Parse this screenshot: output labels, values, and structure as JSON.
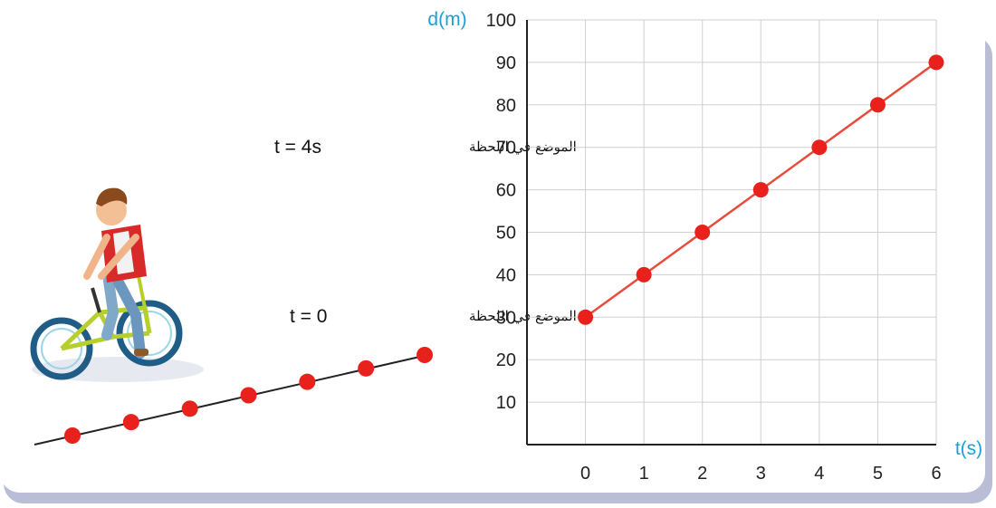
{
  "chart_data": {
    "type": "line",
    "x": [
      0,
      1,
      2,
      3,
      4,
      5,
      6
    ],
    "y": [
      30,
      40,
      50,
      60,
      70,
      80,
      90
    ],
    "xlabel": "t(s)",
    "ylabel": "d(m)",
    "xlim": [
      -1,
      6
    ],
    "ylim": [
      0,
      100
    ],
    "xticks": [
      0,
      1,
      2,
      3,
      4,
      5,
      6
    ],
    "yticks": [
      10,
      20,
      30,
      40,
      50,
      60,
      70,
      80,
      90,
      100
    ],
    "grid": true,
    "line_color": "#e84b3c",
    "marker_color": "#e8211d"
  },
  "illustration": {
    "track_dot_count": 7,
    "track_dot_color": "#e8211d",
    "callout_t4": {
      "arabic": "الموضع في اللحظة",
      "equation": "t = 4s"
    },
    "callout_t0": {
      "arabic": "الموضع في اللحظة",
      "equation": "t = 0"
    }
  }
}
